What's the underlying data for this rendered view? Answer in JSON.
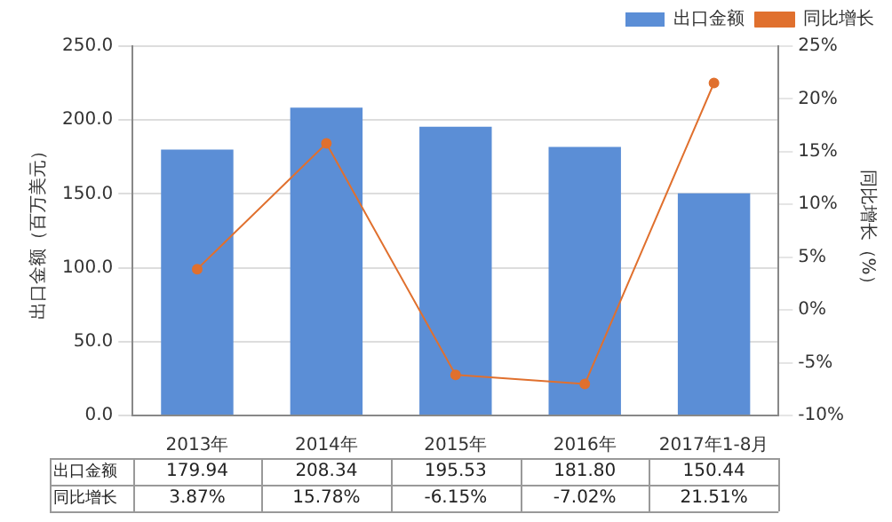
{
  "chart_data": {
    "type": "bar",
    "categories": [
      "2013年",
      "2014年",
      "2015年",
      "2016年",
      "2017年1-8月"
    ],
    "ylabel": "出口金额（百万美元）",
    "y2label": "同比增长（%）",
    "series": [
      {
        "name": "出口金额",
        "color": "#5b8ed6",
        "values": [
          179.94,
          208.34,
          195.53,
          181.8,
          150.44
        ],
        "value_labels": [
          "179.94",
          "208.34",
          "195.53",
          "181.80",
          "150.44"
        ]
      },
      {
        "name": "同比增长",
        "type": "line",
        "axis": "y2",
        "color": "#e0702e",
        "values": [
          3.87,
          15.78,
          -6.15,
          -7.02,
          21.51
        ],
        "value_labels": [
          "3.87%",
          "15.78%",
          "-6.15%",
          "-7.02%",
          "21.51%"
        ]
      }
    ],
    "ylim": [
      0,
      250
    ],
    "yticks": [
      {
        "value": 0,
        "label": "0.0"
      },
      {
        "value": 50,
        "label": "50.0"
      },
      {
        "value": 100,
        "label": "100.0"
      },
      {
        "value": 150,
        "label": "150.0"
      },
      {
        "value": 200,
        "label": "200.0"
      },
      {
        "value": 250,
        "label": "250.0"
      }
    ],
    "y2lim": [
      -10,
      25
    ],
    "y2ticks": [
      {
        "value": -10,
        "label": "-10%"
      },
      {
        "value": -5,
        "label": "-5%"
      },
      {
        "value": 0,
        "label": "0%"
      },
      {
        "value": 5,
        "label": "5%"
      },
      {
        "value": 10,
        "label": "10%"
      },
      {
        "value": 15,
        "label": "15%"
      },
      {
        "value": 20,
        "label": "20%"
      },
      {
        "value": 25,
        "label": "25%"
      }
    ],
    "grid": "y",
    "legend": "top",
    "marker": "circle",
    "line_style": "solid"
  }
}
